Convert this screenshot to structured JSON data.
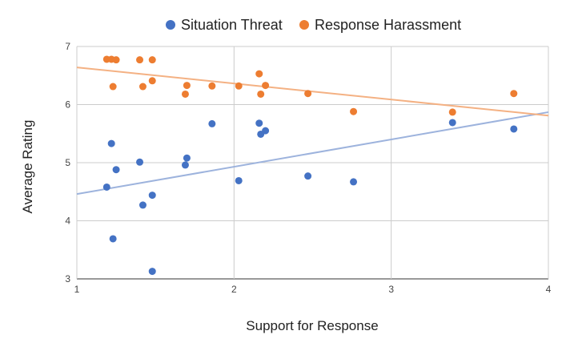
{
  "chart_data": {
    "type": "scatter",
    "xlabel": "Support for Response",
    "ylabel": "Average Rating",
    "xlim": [
      1,
      4
    ],
    "ylim": [
      3,
      7
    ],
    "xticks": [
      "1",
      "2",
      "3",
      "4"
    ],
    "yticks": [
      "3",
      "4",
      "5",
      "6",
      "7"
    ],
    "grid": true,
    "legend": "top",
    "series": [
      {
        "name": "Situation Threat",
        "color": "#4472c4",
        "trendline_color": "#9db3dd",
        "trendline": [
          [
            1,
            4.46
          ],
          [
            4,
            5.87
          ]
        ],
        "points": [
          [
            1.19,
            4.58
          ],
          [
            1.22,
            5.33
          ],
          [
            1.23,
            3.69
          ],
          [
            1.25,
            4.88
          ],
          [
            1.4,
            5.01
          ],
          [
            1.42,
            4.27
          ],
          [
            1.48,
            4.44
          ],
          [
            1.48,
            3.13
          ],
          [
            1.69,
            4.96
          ],
          [
            1.7,
            5.08
          ],
          [
            1.86,
            5.67
          ],
          [
            2.03,
            4.69
          ],
          [
            2.16,
            5.68
          ],
          [
            2.17,
            5.49
          ],
          [
            2.2,
            5.55
          ],
          [
            2.47,
            4.77
          ],
          [
            2.76,
            4.67
          ],
          [
            3.39,
            5.69
          ],
          [
            3.78,
            5.58
          ]
        ]
      },
      {
        "name": "Response Harassment",
        "color": "#ed7d31",
        "trendline_color": "#f4b183",
        "trendline": [
          [
            1,
            6.64
          ],
          [
            4,
            5.81
          ]
        ],
        "points": [
          [
            1.19,
            6.78
          ],
          [
            1.22,
            6.78
          ],
          [
            1.25,
            6.77
          ],
          [
            1.23,
            6.31
          ],
          [
            1.4,
            6.77
          ],
          [
            1.42,
            6.31
          ],
          [
            1.48,
            6.77
          ],
          [
            1.48,
            6.41
          ],
          [
            1.69,
            6.18
          ],
          [
            1.7,
            6.33
          ],
          [
            1.86,
            6.32
          ],
          [
            2.03,
            6.32
          ],
          [
            2.16,
            6.53
          ],
          [
            2.17,
            6.18
          ],
          [
            2.2,
            6.33
          ],
          [
            2.47,
            6.19
          ],
          [
            2.76,
            5.88
          ],
          [
            3.39,
            5.87
          ],
          [
            3.78,
            6.19
          ]
        ]
      }
    ]
  }
}
